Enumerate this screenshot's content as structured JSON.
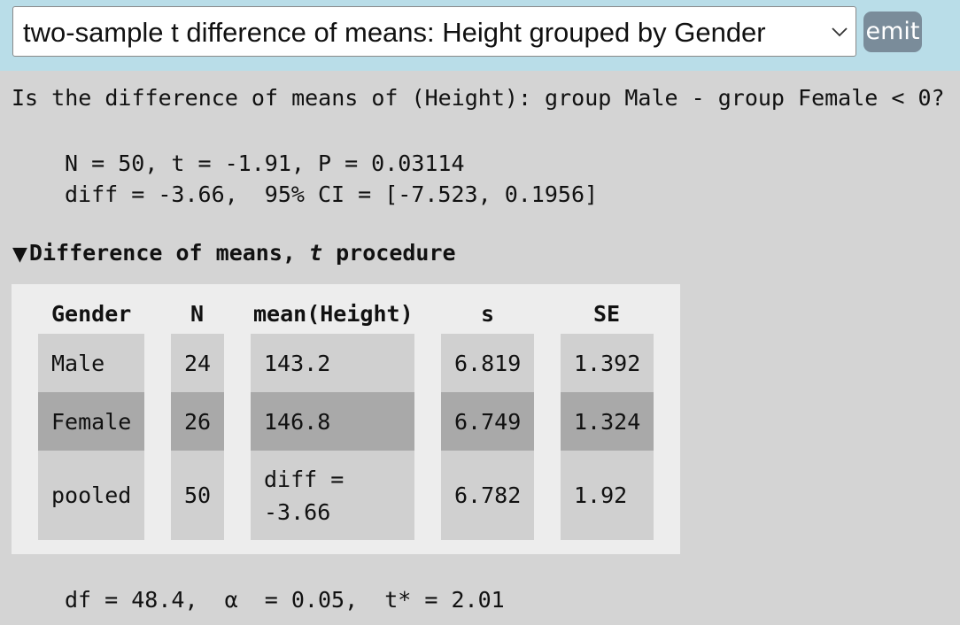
{
  "header": {
    "test_select_value": "two-sample t difference of means: Height grouped by Gender",
    "emit_label": "emit"
  },
  "question": "Is the difference of means of (Height): group Male - group Female < 0?",
  "result": {
    "line1": "N = 50, t = -1.91, P = 0.03114",
    "line2": "diff = -3.66,  95% CI = [-7.523, 0.1956]"
  },
  "details": {
    "summary_prefix": "Difference of means, ",
    "summary_italic": "t",
    "summary_suffix": " procedure"
  },
  "table": {
    "headers": [
      "Gender",
      "N",
      "mean(Height)",
      "s",
      "SE"
    ],
    "rows": [
      [
        "Male",
        "24",
        "143.2",
        "6.819",
        "1.392"
      ],
      [
        "Female",
        "26",
        "146.8",
        "6.749",
        "1.324"
      ],
      [
        "pooled",
        "50",
        "diff = -3.66",
        "6.782",
        "1.92"
      ]
    ]
  },
  "footer": "df = 48.4,  α  = 0.05,  t* = 2.01",
  "colors": {
    "topbar": "#b9dde8",
    "background": "#d4d4d4",
    "panel": "#ededed",
    "row_light": "#d0d0d0",
    "row_dark": "#a9a9a9",
    "emit_button": "#7a8c9a"
  }
}
